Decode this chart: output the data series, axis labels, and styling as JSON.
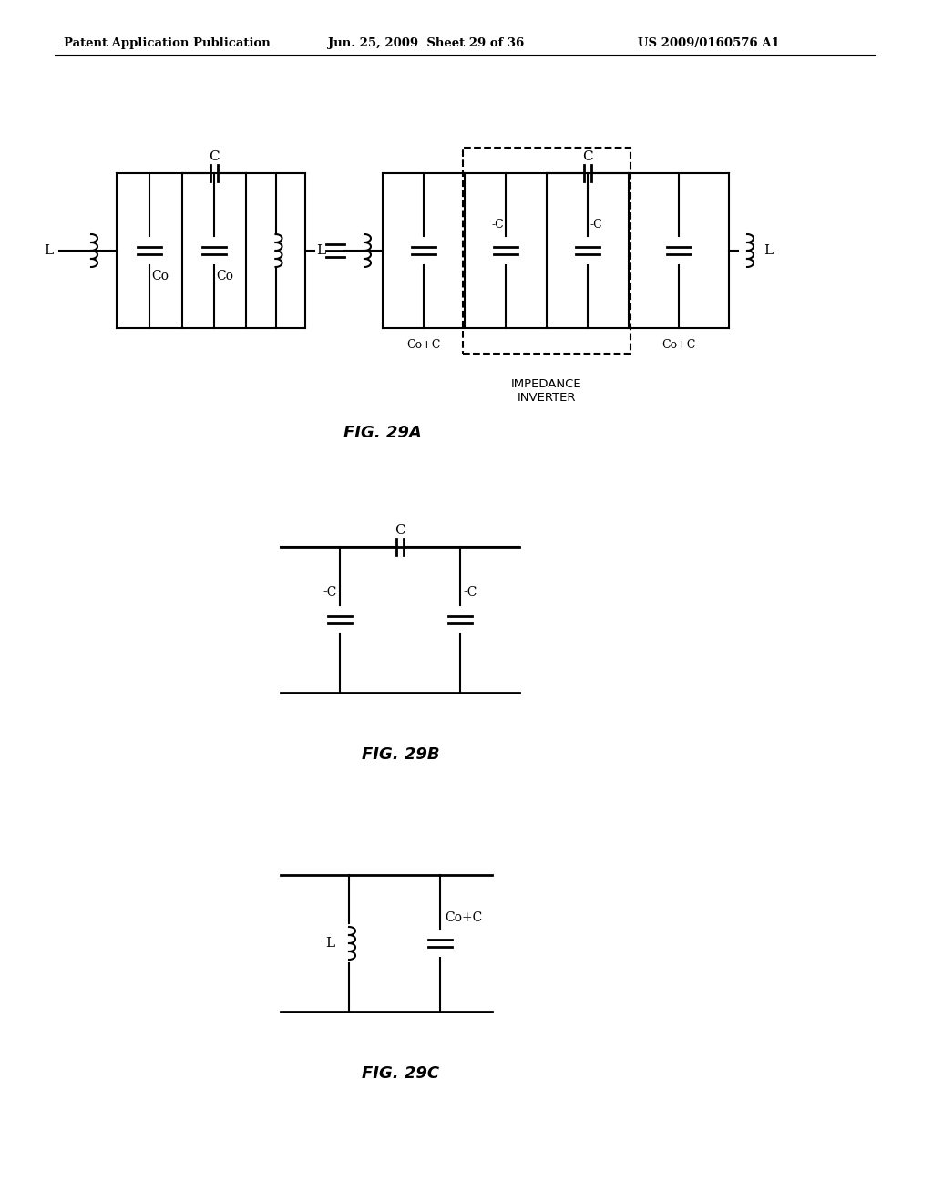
{
  "bg_color": "#ffffff",
  "header_left": "Patent Application Publication",
  "header_mid": "Jun. 25, 2009  Sheet 29 of 36",
  "header_right": "US 2009/0160576 A1",
  "fig_label_29a": "FIG. 29A",
  "fig_label_29b": "FIG. 29B",
  "fig_label_29c": "FIG. 29C",
  "impedance_label": "IMPEDANCE\nINVERTER"
}
